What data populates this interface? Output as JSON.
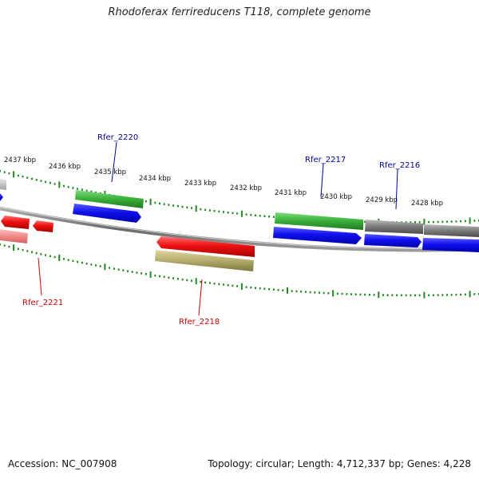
{
  "title": "Rhodoferax ferrireducens T118, complete genome",
  "footer": {
    "accession": "Accession: NC_007908",
    "summary": "Topology: circular; Length: 4,712,337 bp; Genes: 4,228"
  },
  "ticks": [
    "2437 kbp",
    "2436 kbp",
    "2435 kbp",
    "2434 kbp",
    "2433 kbp",
    "2432 kbp",
    "2431 kbp",
    "2430 kbp",
    "2429 kbp",
    "2428 kbp"
  ],
  "gene_labels": {
    "rfer_2220": "Rfer_2220",
    "rfer_2217": "Rfer_2217",
    "rfer_2216": "Rfer_2216",
    "rfer_2221": "Rfer_2221",
    "rfer_2218": "Rfer_2218"
  },
  "colors": {
    "green": "#3cb43c",
    "blue": "#1010ee",
    "red": "#ee1010",
    "pink": "#f08a8a",
    "gray": "#808080",
    "olive": "#b8b070",
    "tick": "#228822",
    "label_blue": "#000099",
    "label_red": "#cc0000"
  }
}
